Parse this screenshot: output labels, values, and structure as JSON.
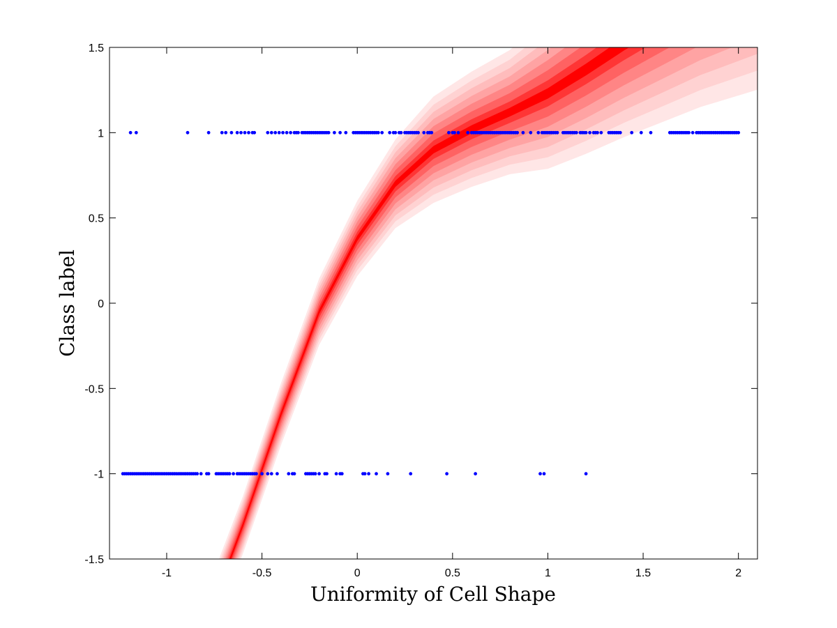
{
  "chart_data": {
    "type": "scatter",
    "xlabel": "Uniformity of Cell Shape",
    "ylabel": "Class label",
    "xlim": [
      -1.3,
      2.1
    ],
    "ylim": [
      -1.5,
      1.5
    ],
    "x_ticks": [
      -1,
      -0.5,
      0,
      0.5,
      1,
      1.5,
      2
    ],
    "y_ticks": [
      -1.5,
      -1,
      -0.5,
      0,
      0.5,
      1,
      1.5
    ],
    "x_tick_labels": [
      "-1",
      "-0.5",
      "0",
      "0.5",
      "1",
      "1.5",
      "2"
    ],
    "y_tick_labels": [
      "-1.5",
      "-1",
      "-0.5",
      "0",
      "0.5",
      "1",
      "1.5"
    ],
    "grid": false,
    "colors": {
      "points": "#0000ff",
      "band": "#ff0000",
      "axes": "#000000"
    },
    "series": [
      {
        "kind": "points",
        "y": 1,
        "x": [
          -1.19,
          -1.16,
          -0.89,
          -0.78,
          -0.71,
          -0.69,
          -0.66,
          -0.63,
          -0.61,
          -0.59,
          -0.57,
          -0.55,
          -0.54,
          -0.47,
          -0.45,
          -0.43,
          -0.41,
          -0.39,
          -0.37,
          -0.35,
          -0.33,
          -0.32,
          -0.31,
          -0.29,
          -0.28,
          -0.27,
          -0.26,
          -0.25,
          -0.24,
          -0.23,
          -0.22,
          -0.21,
          -0.2,
          -0.19,
          -0.18,
          -0.17,
          -0.16,
          -0.15,
          -0.12,
          -0.09,
          -0.06,
          -0.02,
          -0.01,
          0.0,
          0.01,
          0.02,
          0.03,
          0.04,
          0.05,
          0.06,
          0.07,
          0.08,
          0.09,
          0.1,
          0.11,
          0.13,
          0.17,
          0.19,
          0.2,
          0.22,
          0.23,
          0.25,
          0.26,
          0.27,
          0.28,
          0.29,
          0.3,
          0.31,
          0.32,
          0.35,
          0.37,
          0.38,
          0.39,
          0.48,
          0.5,
          0.51,
          0.53,
          0.58,
          0.6,
          0.61,
          0.62,
          0.63,
          0.64,
          0.65,
          0.66,
          0.67,
          0.68,
          0.69,
          0.7,
          0.71,
          0.72,
          0.73,
          0.74,
          0.75,
          0.76,
          0.77,
          0.78,
          0.79,
          0.8,
          0.81,
          0.82,
          0.83,
          0.84,
          0.87,
          0.91,
          0.95,
          0.97,
          0.98,
          0.99,
          1.0,
          1.01,
          1.02,
          1.03,
          1.04,
          1.05,
          1.08,
          1.09,
          1.1,
          1.11,
          1.12,
          1.13,
          1.14,
          1.15,
          1.17,
          1.18,
          1.19,
          1.2,
          1.22,
          1.24,
          1.25,
          1.26,
          1.28,
          1.32,
          1.33,
          1.34,
          1.35,
          1.36,
          1.37,
          1.38,
          1.44,
          1.49,
          1.54,
          1.64,
          1.65,
          1.66,
          1.67,
          1.68,
          1.69,
          1.7,
          1.71,
          1.72,
          1.73,
          1.74,
          1.76,
          1.78,
          1.79,
          1.8,
          1.81,
          1.82,
          1.83,
          1.84,
          1.85,
          1.86,
          1.87,
          1.88,
          1.89,
          1.9,
          1.91,
          1.92,
          1.93,
          1.94,
          1.95,
          1.96,
          1.97,
          1.98,
          1.99,
          2.0
        ]
      },
      {
        "kind": "points",
        "y": -1,
        "x": [
          -1.23,
          -1.22,
          -1.21,
          -1.2,
          -1.19,
          -1.18,
          -1.17,
          -1.16,
          -1.15,
          -1.14,
          -1.13,
          -1.12,
          -1.11,
          -1.1,
          -1.09,
          -1.08,
          -1.07,
          -1.06,
          -1.05,
          -1.04,
          -1.03,
          -1.02,
          -1.01,
          -1.0,
          -0.99,
          -0.98,
          -0.97,
          -0.96,
          -0.95,
          -0.94,
          -0.93,
          -0.92,
          -0.91,
          -0.9,
          -0.89,
          -0.88,
          -0.87,
          -0.86,
          -0.85,
          -0.84,
          -0.82,
          -0.79,
          -0.78,
          -0.74,
          -0.73,
          -0.72,
          -0.71,
          -0.7,
          -0.69,
          -0.68,
          -0.67,
          -0.65,
          -0.63,
          -0.62,
          -0.61,
          -0.6,
          -0.59,
          -0.58,
          -0.57,
          -0.56,
          -0.55,
          -0.54,
          -0.53,
          -0.5,
          -0.47,
          -0.45,
          -0.42,
          -0.36,
          -0.34,
          -0.33,
          -0.27,
          -0.26,
          -0.25,
          -0.24,
          -0.23,
          -0.22,
          -0.2,
          -0.17,
          -0.16,
          -0.11,
          -0.09,
          -0.08,
          0.03,
          0.04,
          0.06,
          0.1,
          0.16,
          0.28,
          0.47,
          0.62,
          0.96,
          0.98,
          1.2
        ]
      },
      {
        "kind": "band",
        "x": [
          -0.8,
          -0.6,
          -0.4,
          -0.2,
          0.0,
          0.2,
          0.4,
          0.6,
          0.8,
          1.0,
          1.2,
          1.4,
          1.6,
          1.8,
          2.1
        ],
        "mean": [
          -1.9,
          -1.3,
          -0.65,
          -0.05,
          0.38,
          0.7,
          0.9,
          1.02,
          1.12,
          1.23,
          1.37,
          1.52,
          1.66,
          1.8,
          1.98
        ],
        "sd": [
          0.07,
          0.065,
          0.07,
          0.075,
          0.085,
          0.1,
          0.12,
          0.13,
          0.14,
          0.17,
          0.19,
          0.21,
          0.23,
          0.25,
          0.28
        ]
      }
    ]
  }
}
